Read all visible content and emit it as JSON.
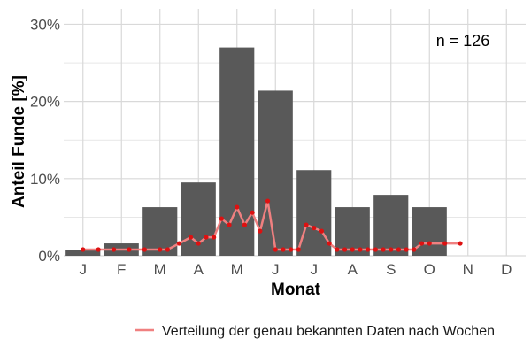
{
  "chart_data": {
    "type": "bar",
    "categories": [
      "J",
      "F",
      "M",
      "A",
      "M",
      "J",
      "J",
      "A",
      "S",
      "O",
      "N",
      "D"
    ],
    "values": [
      0.8,
      1.6,
      6.3,
      9.5,
      27.0,
      21.4,
      11.1,
      6.3,
      7.9,
      6.3,
      0,
      0
    ],
    "line_series": {
      "name": "Verteilung der genau bekannten Daten nach Wochen",
      "x": [
        1,
        1.4,
        1.8,
        2.2,
        2.6,
        3.0,
        3.2,
        3.5,
        3.8,
        4.0,
        4.2,
        4.4,
        4.6,
        4.8,
        5.0,
        5.2,
        5.4,
        5.6,
        5.8,
        6.0,
        6.2,
        6.4,
        6.6,
        6.8,
        7.0,
        7.2,
        7.4,
        7.6,
        7.8,
        8.0,
        8.2,
        8.4,
        8.6,
        8.8,
        9.0,
        9.2,
        9.4,
        9.6,
        9.8,
        10.0,
        10.4,
        10.8
      ],
      "values": [
        0.8,
        0.8,
        0.8,
        0.8,
        0.8,
        0.8,
        0.8,
        1.6,
        2.4,
        1.6,
        2.4,
        2.4,
        4.8,
        4.0,
        6.3,
        4.0,
        5.6,
        3.2,
        7.1,
        0.8,
        0.8,
        0.8,
        0.8,
        4.0,
        3.6,
        3.2,
        1.6,
        0.8,
        0.8,
        0.8,
        0.8,
        0.8,
        0.8,
        0.8,
        0.8,
        0.8,
        0.8,
        0.8,
        1.6,
        1.6,
        1.6,
        1.6
      ]
    },
    "xlabel": "Monat",
    "ylabel": "Anteil Funde [%]",
    "ylim": [
      0,
      32
    ],
    "yticks": [
      0,
      10,
      20,
      30
    ],
    "ytick_labels": [
      "0%",
      "10%",
      "20%",
      "30%"
    ],
    "annotation": "n = 126",
    "grid": true,
    "legend_position": "bottom",
    "colors": {
      "bar": "#595959",
      "line": "#f08080",
      "point": "#dd1111",
      "grid": "#d9d9d9",
      "background": "#ffffff"
    }
  }
}
